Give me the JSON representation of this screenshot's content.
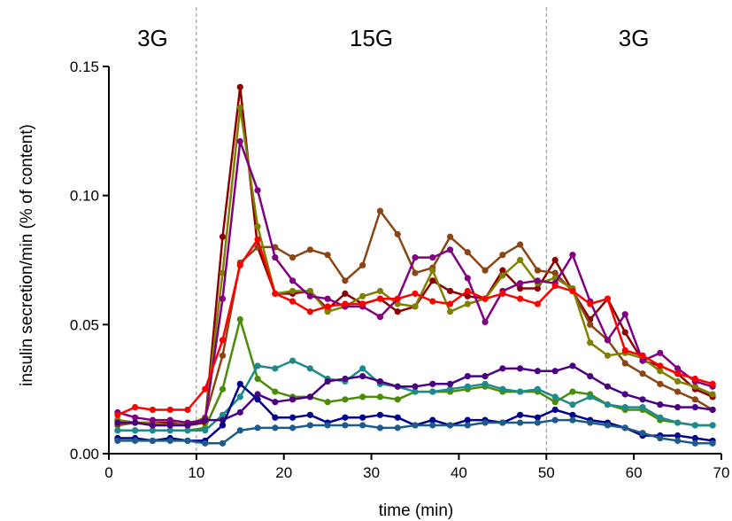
{
  "chart_data": {
    "type": "line",
    "xlabel": "time (min)",
    "ylabel": "insulin secretion/min (% of content)",
    "xlim": [
      0,
      70
    ],
    "ylim": [
      0,
      0.15
    ],
    "xticks": [
      0,
      10,
      20,
      30,
      40,
      50,
      60,
      70
    ],
    "yticks": [
      0.0,
      0.05,
      0.1,
      0.15
    ],
    "ytick_labels": [
      "0.00",
      "0.05",
      "0.10",
      "0.15"
    ],
    "grid": false,
    "phase_dividers": [
      10,
      50
    ],
    "phases": [
      {
        "label": "3G",
        "start": 0,
        "end": 10
      },
      {
        "label": "15G",
        "start": 10,
        "end": 50
      },
      {
        "label": "3G",
        "start": 50,
        "end": 70
      }
    ],
    "x": [
      1,
      3,
      5,
      7,
      9,
      11,
      13,
      15,
      17,
      19,
      21,
      23,
      25,
      27,
      29,
      31,
      33,
      35,
      37,
      39,
      41,
      43,
      45,
      47,
      49,
      51,
      53,
      55,
      57,
      59,
      61,
      63,
      65,
      67,
      69
    ],
    "series": [
      {
        "color": "#8b0000",
        "values": [
          0.013,
          0.012,
          0.012,
          0.012,
          0.011,
          0.012,
          0.084,
          0.142,
          0.08,
          0.062,
          0.062,
          0.063,
          0.056,
          0.062,
          0.058,
          0.06,
          0.055,
          0.057,
          0.067,
          0.063,
          0.061,
          0.06,
          0.071,
          0.064,
          0.064,
          0.075,
          0.063,
          0.052,
          0.06,
          0.047,
          0.036,
          0.034,
          0.031,
          0.025,
          0.022
        ]
      },
      {
        "color": "#8b4513",
        "values": [
          0.011,
          0.012,
          0.011,
          0.011,
          0.011,
          0.014,
          0.038,
          0.074,
          0.08,
          0.08,
          0.076,
          0.079,
          0.077,
          0.067,
          0.073,
          0.094,
          0.085,
          0.07,
          0.072,
          0.084,
          0.078,
          0.071,
          0.077,
          0.081,
          0.071,
          0.07,
          0.063,
          0.05,
          0.044,
          0.035,
          0.031,
          0.027,
          0.024,
          0.021,
          0.017
        ]
      },
      {
        "color": "#808000",
        "values": [
          0.013,
          0.012,
          0.012,
          0.011,
          0.012,
          0.013,
          0.07,
          0.134,
          0.088,
          0.062,
          0.063,
          0.063,
          0.055,
          0.057,
          0.061,
          0.063,
          0.058,
          0.057,
          0.071,
          0.055,
          0.058,
          0.06,
          0.069,
          0.075,
          0.066,
          0.068,
          0.064,
          0.043,
          0.038,
          0.039,
          0.037,
          0.032,
          0.028,
          0.026,
          0.023
        ]
      },
      {
        "color": "#800080",
        "values": [
          0.016,
          0.014,
          0.013,
          0.013,
          0.012,
          0.013,
          0.06,
          0.121,
          0.102,
          0.076,
          0.067,
          0.061,
          0.06,
          0.057,
          0.057,
          0.053,
          0.06,
          0.076,
          0.076,
          0.079,
          0.068,
          0.051,
          0.063,
          0.066,
          0.067,
          0.066,
          0.077,
          0.059,
          0.044,
          0.054,
          0.036,
          0.039,
          0.033,
          0.028,
          0.026
        ]
      },
      {
        "color": "#ff0000",
        "values": [
          0.015,
          0.018,
          0.017,
          0.017,
          0.017,
          0.025,
          0.044,
          0.073,
          0.083,
          0.062,
          0.059,
          0.055,
          0.057,
          0.058,
          0.058,
          0.06,
          0.06,
          0.062,
          0.059,
          0.058,
          0.063,
          0.06,
          0.062,
          0.06,
          0.058,
          0.065,
          0.063,
          0.058,
          0.06,
          0.04,
          0.038,
          0.034,
          0.031,
          0.029,
          0.027
        ]
      },
      {
        "color": "#4b8b0a",
        "values": [
          0.009,
          0.009,
          0.009,
          0.009,
          0.009,
          0.01,
          0.025,
          0.052,
          0.029,
          0.024,
          0.022,
          0.022,
          0.02,
          0.021,
          0.022,
          0.022,
          0.021,
          0.024,
          0.024,
          0.024,
          0.025,
          0.026,
          0.024,
          0.024,
          0.024,
          0.02,
          0.024,
          0.023,
          0.019,
          0.017,
          0.017,
          0.013,
          0.012,
          0.011,
          0.011
        ]
      },
      {
        "color": "#1f8a8a",
        "values": [
          0.009,
          0.009,
          0.009,
          0.009,
          0.009,
          0.009,
          0.015,
          0.022,
          0.034,
          0.033,
          0.036,
          0.033,
          0.029,
          0.028,
          0.033,
          0.027,
          0.026,
          0.024,
          0.024,
          0.025,
          0.026,
          0.027,
          0.025,
          0.024,
          0.025,
          0.022,
          0.019,
          0.022,
          0.019,
          0.018,
          0.018,
          0.014,
          0.012,
          0.011,
          0.011
        ]
      },
      {
        "color": "#4b0082",
        "values": [
          0.012,
          0.012,
          0.011,
          0.011,
          0.011,
          0.013,
          0.013,
          0.016,
          0.023,
          0.02,
          0.021,
          0.022,
          0.028,
          0.029,
          0.03,
          0.028,
          0.026,
          0.026,
          0.027,
          0.027,
          0.03,
          0.03,
          0.033,
          0.033,
          0.032,
          0.032,
          0.034,
          0.03,
          0.026,
          0.023,
          0.021,
          0.019,
          0.018,
          0.018,
          0.017
        ]
      },
      {
        "color": "#00008b",
        "values": [
          0.006,
          0.006,
          0.005,
          0.006,
          0.005,
          0.005,
          0.011,
          0.027,
          0.021,
          0.014,
          0.014,
          0.015,
          0.012,
          0.014,
          0.014,
          0.015,
          0.014,
          0.011,
          0.013,
          0.011,
          0.013,
          0.013,
          0.012,
          0.015,
          0.014,
          0.017,
          0.015,
          0.013,
          0.012,
          0.01,
          0.007,
          0.007,
          0.007,
          0.006,
          0.005
        ]
      },
      {
        "color": "#1e5a8a",
        "values": [
          0.005,
          0.005,
          0.005,
          0.005,
          0.005,
          0.004,
          0.004,
          0.009,
          0.01,
          0.01,
          0.01,
          0.011,
          0.011,
          0.011,
          0.011,
          0.01,
          0.01,
          0.011,
          0.011,
          0.011,
          0.011,
          0.012,
          0.012,
          0.012,
          0.012,
          0.013,
          0.013,
          0.012,
          0.011,
          0.01,
          0.008,
          0.006,
          0.005,
          0.004,
          0.004
        ]
      }
    ]
  }
}
